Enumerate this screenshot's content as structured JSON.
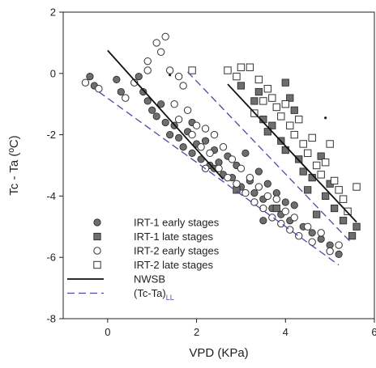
{
  "chart_data": {
    "type": "scatter",
    "title": "",
    "xlabel": "VPD (KPa)",
    "ylabel": "Tc - Ta (ºC)",
    "xlim": [
      -1,
      6
    ],
    "ylim": [
      -8,
      2
    ],
    "xticks": [
      "0",
      "2",
      "4",
      "6"
    ],
    "yticks": [
      "2",
      "0",
      "-2",
      "-4",
      "-6",
      "-8"
    ],
    "grid": false,
    "legend_position": "bottom-left",
    "series": [
      {
        "name": "IRT-1 early stages",
        "marker": "circle-filled",
        "color": "#6e6e6e",
        "points": [
          [
            -0.4,
            -0.1
          ],
          [
            -0.3,
            -0.4
          ],
          [
            0.2,
            -0.2
          ],
          [
            0.3,
            -0.6
          ],
          [
            0.7,
            -0.1
          ],
          [
            0.8,
            -0.6
          ],
          [
            0.9,
            -0.9
          ],
          [
            1.0,
            -1.2
          ],
          [
            1.1,
            -1.4
          ],
          [
            1.2,
            -1.0
          ],
          [
            1.3,
            -1.6
          ],
          [
            1.4,
            -2.0
          ],
          [
            1.5,
            -1.7
          ],
          [
            1.6,
            -2.1
          ],
          [
            1.7,
            -2.4
          ],
          [
            1.8,
            -1.9
          ],
          [
            1.9,
            -2.6
          ],
          [
            2.0,
            -2.3
          ],
          [
            2.1,
            -2.8
          ],
          [
            2.2,
            -2.2
          ],
          [
            2.3,
            -3.0
          ],
          [
            2.4,
            -2.5
          ],
          [
            2.5,
            -2.9
          ],
          [
            2.6,
            -3.3
          ],
          [
            2.7,
            -2.7
          ],
          [
            2.8,
            -3.4
          ],
          [
            2.9,
            -3.0
          ],
          [
            3.0,
            -3.7
          ],
          [
            3.1,
            -2.6
          ],
          [
            3.2,
            -3.5
          ],
          [
            3.3,
            -3.9
          ],
          [
            3.4,
            -3.2
          ],
          [
            3.5,
            -4.1
          ],
          [
            3.6,
            -3.6
          ],
          [
            3.7,
            -4.4
          ],
          [
            3.8,
            -3.9
          ],
          [
            3.9,
            -4.6
          ],
          [
            4.0,
            -4.2
          ],
          [
            4.1,
            -4.8
          ],
          [
            4.2,
            -4.3
          ],
          [
            4.4,
            -5.0
          ],
          [
            4.6,
            -5.2
          ],
          [
            4.8,
            -5.4
          ],
          [
            5.0,
            -5.6
          ],
          [
            5.2,
            -5.9
          ],
          [
            3.5,
            -4.8
          ],
          [
            2.4,
            -3.1
          ],
          [
            1.9,
            -1.6
          ]
        ]
      },
      {
        "name": "IRT-1 late stages",
        "marker": "square-filled",
        "color": "#6e6e6e",
        "points": [
          [
            3.0,
            -0.4
          ],
          [
            3.3,
            -0.9
          ],
          [
            3.5,
            -1.5
          ],
          [
            3.7,
            -1.7
          ],
          [
            3.9,
            -2.2
          ],
          [
            4.0,
            -2.5
          ],
          [
            4.1,
            -0.8
          ],
          [
            4.2,
            -1.2
          ],
          [
            4.3,
            -2.8
          ],
          [
            4.4,
            -3.2
          ],
          [
            4.5,
            -3.8
          ],
          [
            4.6,
            -3.4
          ],
          [
            4.8,
            -2.7
          ],
          [
            4.9,
            -4.0
          ],
          [
            5.0,
            -3.6
          ],
          [
            5.1,
            -4.4
          ],
          [
            5.3,
            -4.8
          ],
          [
            5.5,
            -5.3
          ],
          [
            5.6,
            -5.0
          ],
          [
            3.6,
            -1.9
          ],
          [
            4.0,
            -0.3
          ],
          [
            3.4,
            -0.6
          ],
          [
            4.7,
            -4.6
          ],
          [
            2.9,
            -3.8
          ],
          [
            3.8,
            -4.4
          ]
        ]
      },
      {
        "name": "IRT-2 early stages",
        "marker": "circle-open",
        "color": "#444444",
        "points": [
          [
            -0.5,
            -0.3
          ],
          [
            -0.2,
            -0.5
          ],
          [
            0.4,
            -0.8
          ],
          [
            0.6,
            -0.3
          ],
          [
            0.9,
            0.4
          ],
          [
            1.1,
            1.0
          ],
          [
            1.2,
            0.7
          ],
          [
            1.3,
            1.2
          ],
          [
            1.4,
            0.1
          ],
          [
            1.5,
            -1.0
          ],
          [
            1.6,
            -1.5
          ],
          [
            1.7,
            -0.4
          ],
          [
            1.8,
            -1.2
          ],
          [
            1.9,
            -2.0
          ],
          [
            2.0,
            -1.7
          ],
          [
            2.1,
            -2.4
          ],
          [
            2.2,
            -1.8
          ],
          [
            2.3,
            -2.6
          ],
          [
            2.4,
            -2.0
          ],
          [
            2.5,
            -3.1
          ],
          [
            2.6,
            -2.4
          ],
          [
            2.7,
            -3.4
          ],
          [
            2.8,
            -2.8
          ],
          [
            2.9,
            -3.6
          ],
          [
            3.0,
            -3.1
          ],
          [
            3.1,
            -3.9
          ],
          [
            3.2,
            -3.4
          ],
          [
            3.3,
            -4.2
          ],
          [
            3.4,
            -3.7
          ],
          [
            3.5,
            -4.4
          ],
          [
            3.6,
            -4.0
          ],
          [
            3.7,
            -4.7
          ],
          [
            3.8,
            -4.1
          ],
          [
            3.9,
            -4.9
          ],
          [
            4.0,
            -4.5
          ],
          [
            4.1,
            -5.1
          ],
          [
            4.2,
            -4.7
          ],
          [
            4.3,
            -5.3
          ],
          [
            4.5,
            -5.0
          ],
          [
            4.6,
            -5.5
          ],
          [
            4.8,
            -5.2
          ],
          [
            5.0,
            -5.8
          ],
          [
            5.2,
            -5.6
          ],
          [
            1.6,
            -0.1
          ],
          [
            2.2,
            -3.1
          ],
          [
            0.9,
            0.1
          ]
        ]
      },
      {
        "name": "IRT-2 late stages",
        "marker": "square-open",
        "color": "#444444",
        "points": [
          [
            1.9,
            0.1
          ],
          [
            2.7,
            0.1
          ],
          [
            2.9,
            -0.1
          ],
          [
            3.0,
            0.2
          ],
          [
            3.2,
            0.2
          ],
          [
            3.4,
            -0.2
          ],
          [
            3.6,
            -0.5
          ],
          [
            3.7,
            -0.8
          ],
          [
            3.8,
            -1.1
          ],
          [
            3.9,
            -1.4
          ],
          [
            4.0,
            -1.0
          ],
          [
            4.1,
            -1.7
          ],
          [
            4.2,
            -2.0
          ],
          [
            4.3,
            -1.5
          ],
          [
            4.4,
            -2.3
          ],
          [
            4.5,
            -2.6
          ],
          [
            4.6,
            -2.1
          ],
          [
            4.7,
            -3.0
          ],
          [
            4.8,
            -3.3
          ],
          [
            4.9,
            -2.9
          ],
          [
            5.0,
            -2.3
          ],
          [
            5.1,
            -3.5
          ],
          [
            5.2,
            -3.8
          ],
          [
            5.3,
            -4.1
          ],
          [
            5.4,
            -4.5
          ],
          [
            5.6,
            -3.7
          ],
          [
            3.5,
            -0.9
          ],
          [
            3.3,
            -1.3
          ]
        ]
      },
      {
        "name": "NWSB",
        "type": "line",
        "style": "solid",
        "color": "#111111",
        "points": [
          [
            0.0,
            0.75
          ],
          [
            2.6,
            -3.45
          ]
        ]
      },
      {
        "name": "NWSB",
        "type": "line",
        "style": "solid",
        "color": "#111111",
        "points": [
          [
            2.7,
            -0.35
          ],
          [
            5.6,
            -4.85
          ]
        ]
      },
      {
        "name": "(Tc-Ta)",
        "name_subscript": "LL",
        "type": "line",
        "style": "dashed",
        "color": "#4a4aa8",
        "points": [
          [
            -0.2,
            -0.6
          ],
          [
            5.2,
            -6.25
          ]
        ]
      },
      {
        "name": "(Tc-Ta)",
        "name_subscript": "LL",
        "type": "line",
        "style": "dashed",
        "color": "#4a4aa8",
        "points": [
          [
            1.8,
            0.05
          ],
          [
            5.5,
            -5.55
          ]
        ]
      }
    ],
    "legend": [
      {
        "label": "IRT-1 early stages",
        "marker": "circle-filled"
      },
      {
        "label": "IRT-1 late stages",
        "marker": "square-filled"
      },
      {
        "label": "IRT-2 early stages",
        "marker": "circle-open"
      },
      {
        "label": "IRT-2 late stages",
        "marker": "square-open"
      },
      {
        "label": "NWSB",
        "marker": "line-solid"
      },
      {
        "label": "(Tc-Ta)",
        "subscript": "LL",
        "marker": "line-dashed"
      }
    ],
    "annotations": [
      {
        "x": 1.4,
        "y": -0.05,
        "marker": "dot"
      },
      {
        "x": 4.9,
        "y": -1.45,
        "marker": "dot"
      }
    ]
  }
}
